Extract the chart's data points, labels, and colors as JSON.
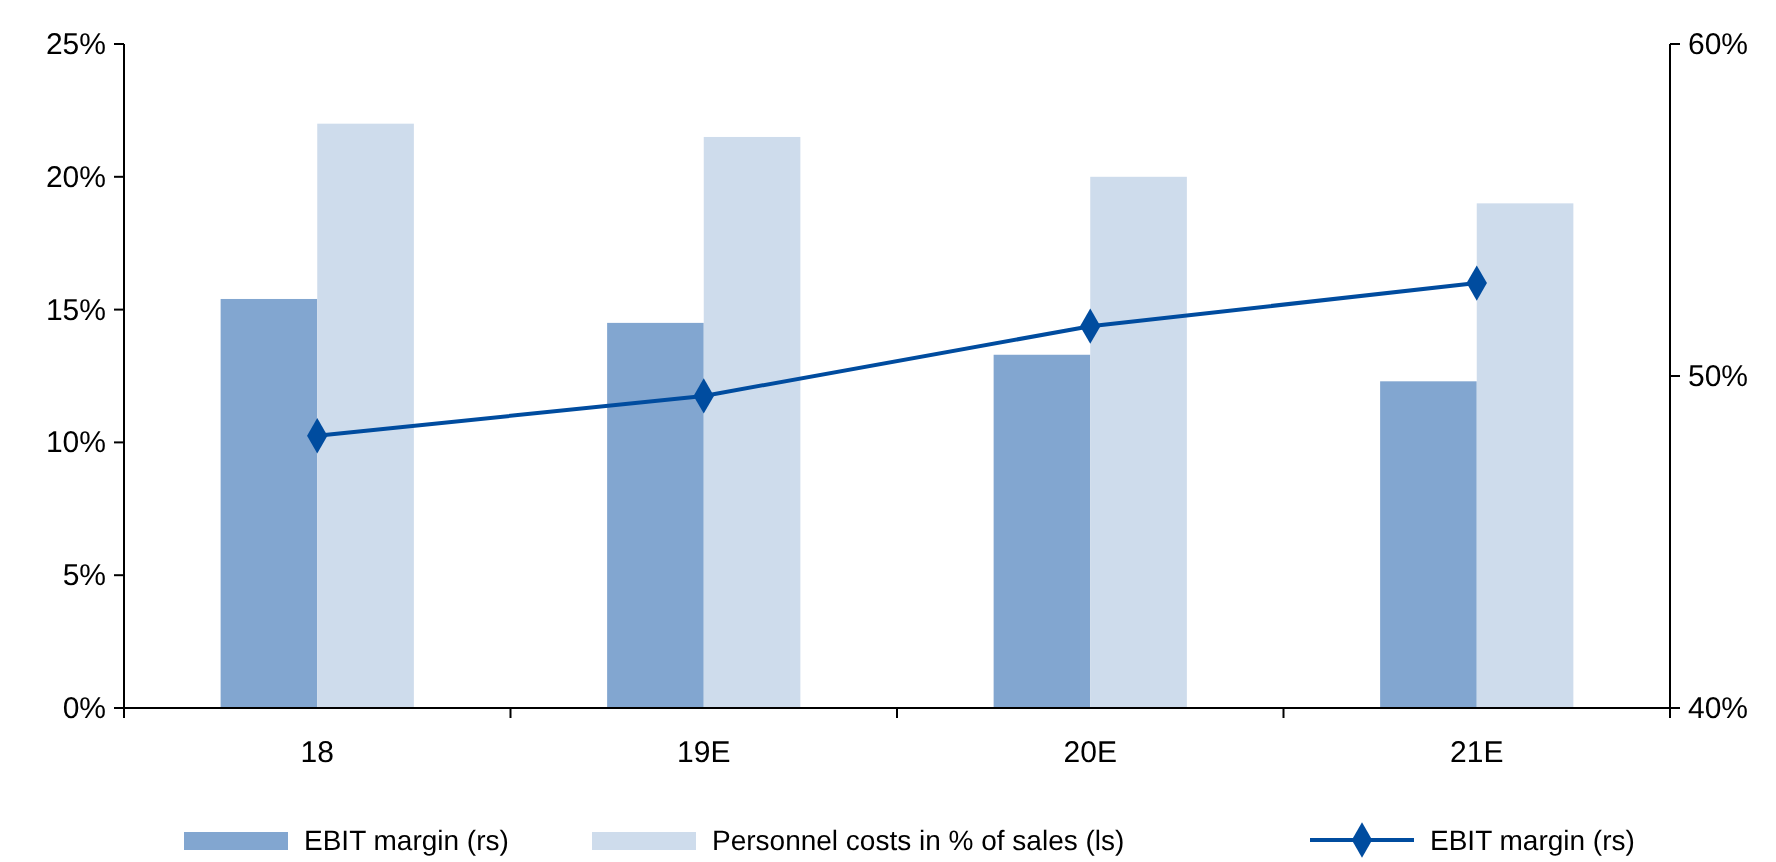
{
  "chart_data": {
    "type": "bar",
    "categories": [
      "18",
      "19E",
      "20E",
      "21E"
    ],
    "series": [
      {
        "name": "EBIT margin (rs)",
        "color": "#82a6d0",
        "values": [
          15.4,
          14.5,
          13.3,
          12.3
        ]
      },
      {
        "name": "Personnel costs in % of sales (ls)",
        "color": "#cedcec",
        "values": [
          22.0,
          21.5,
          20.0,
          19.0
        ]
      },
      {
        "name": "EBIT margin (rs)",
        "type": "line",
        "axis": "y2",
        "color": "#004c9f",
        "values": [
          48.2,
          49.4,
          51.5,
          52.8
        ],
        "marker": "diamond"
      }
    ],
    "ylim": [
      0,
      25
    ],
    "yticks": [
      {
        "value": 0,
        "label": "0%"
      },
      {
        "value": 5,
        "label": "5%"
      },
      {
        "value": 10,
        "label": "10%"
      },
      {
        "value": 15,
        "label": "15%"
      },
      {
        "value": 20,
        "label": "20%"
      },
      {
        "value": 25,
        "label": "25%"
      }
    ],
    "y2lim": [
      40,
      60
    ],
    "y2ticks": [
      {
        "value": 40,
        "label": "40%"
      },
      {
        "value": 50,
        "label": "50%"
      },
      {
        "value": 60,
        "label": "60%"
      }
    ],
    "grid": false,
    "legend": "bottom"
  }
}
